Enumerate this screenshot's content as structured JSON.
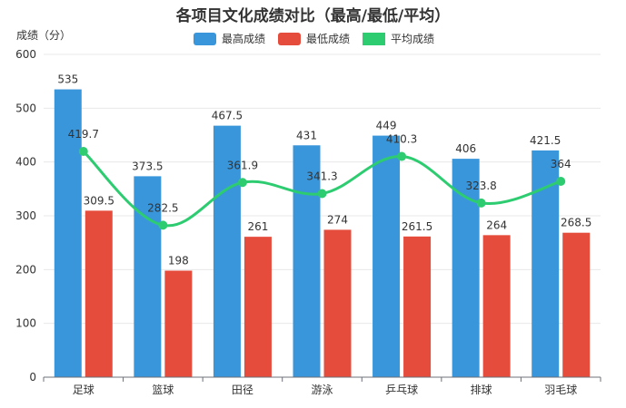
{
  "chart_data": {
    "type": "bar",
    "title": "各项目文化成绩对比（最高/最低/平均）",
    "ylabel": "成绩（分）",
    "xlabel": "",
    "ylim": [
      0,
      600
    ],
    "yticks": [
      0,
      100,
      200,
      300,
      400,
      500,
      600
    ],
    "categories": [
      "足球",
      "篮球",
      "田径",
      "游泳",
      "乒乓球",
      "排球",
      "羽毛球"
    ],
    "series": [
      {
        "name": "最高成绩",
        "type": "bar",
        "color": "#3a96db",
        "values": [
          535,
          373.5,
          467.5,
          431,
          449,
          406,
          421.5
        ]
      },
      {
        "name": "最低成绩",
        "type": "bar",
        "color": "#e64c3c",
        "values": [
          309.5,
          198,
          261,
          274,
          261.5,
          264,
          268.5
        ]
      },
      {
        "name": "平均成绩",
        "type": "line",
        "color": "#2ecc71",
        "values": [
          419.7,
          282.5,
          361.9,
          341.3,
          410.3,
          323.8,
          364
        ]
      }
    ],
    "value_labels": {
      "最高成绩": [
        "535",
        "373.5",
        "467.5",
        "431",
        "449",
        "406",
        "421.5"
      ],
      "最低成绩": [
        "309.5",
        "198",
        "261",
        "274",
        "261.5",
        "264",
        "268.5"
      ],
      "平均成绩": [
        "419.7",
        "282.5",
        "361.9",
        "341.3",
        "410.3",
        "323.8",
        "364"
      ]
    },
    "legend_position": "top-center",
    "grid": true
  }
}
